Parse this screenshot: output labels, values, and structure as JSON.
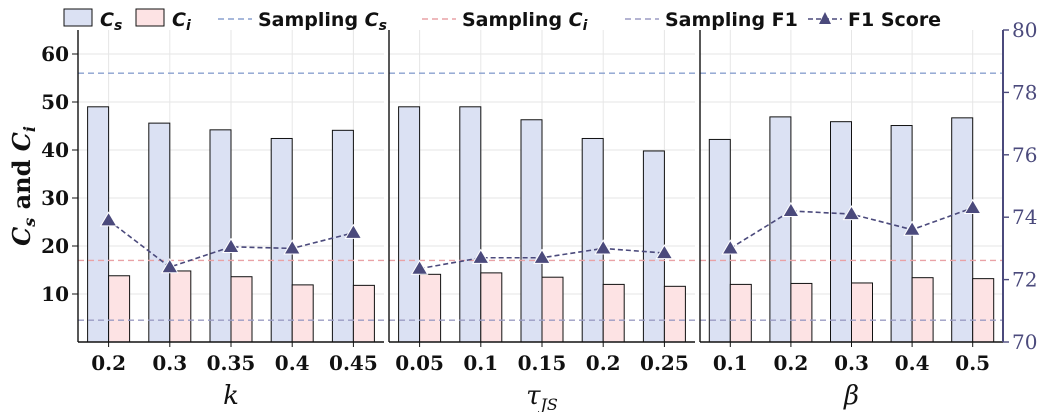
{
  "legend": {
    "items": [
      {
        "label": "C",
        "sub": "s",
        "kind": "bar",
        "color": "#dbe1f3"
      },
      {
        "label": "C",
        "sub": "i",
        "kind": "bar",
        "color": "#fde3e4"
      },
      {
        "label": "Sampling C",
        "sub": "s",
        "kind": "dash",
        "color": "#8aa0cf"
      },
      {
        "label": "Sampling C",
        "sub": "i",
        "kind": "dash",
        "color": "#e9a2a6"
      },
      {
        "label": "Sampling F1",
        "sub": "",
        "kind": "dash",
        "color": "#9b9cc3"
      },
      {
        "label": "F1 Score",
        "sub": "",
        "kind": "line-marker",
        "color": "#4b4a7c"
      }
    ]
  },
  "left_axis": {
    "label_main": "C",
    "label_sub1": "s",
    "label_and": " and ",
    "label_sub2": "i",
    "ticks": [
      "10",
      "20",
      "30",
      "40",
      "50",
      "60"
    ]
  },
  "right_axis": {
    "ticks": [
      "70",
      "72",
      "74",
      "76",
      "78",
      "80"
    ]
  },
  "chart_data": [
    {
      "type": "bar",
      "categories": [
        "0.2",
        "0.3",
        "0.35",
        "0.4",
        "0.45"
      ],
      "xlabel": "k",
      "ylim": [
        0,
        65
      ],
      "y2lim": [
        70,
        80
      ],
      "series": [
        {
          "name": "Cs",
          "values": [
            49,
            45.6,
            44.2,
            42.4,
            44.1
          ]
        },
        {
          "name": "Ci",
          "values": [
            13.8,
            14.8,
            13.6,
            11.9,
            11.8
          ]
        },
        {
          "name": "F1 Score",
          "axis": "right",
          "values": [
            73.9,
            72.4,
            73.05,
            73.0,
            73.5
          ]
        }
      ],
      "reference_lines": {
        "Sampling Cs": 56,
        "Sampling Ci": 17,
        "Sampling F1": 70.7
      }
    },
    {
      "type": "bar",
      "categories": [
        "0.05",
        "0.1",
        "0.15",
        "0.2",
        "0.25"
      ],
      "xlabel": "τJS",
      "ylim": [
        0,
        65
      ],
      "y2lim": [
        70,
        80
      ],
      "series": [
        {
          "name": "Cs",
          "values": [
            49,
            49,
            46.3,
            42.4,
            39.8
          ]
        },
        {
          "name": "Ci",
          "values": [
            14.1,
            14.4,
            13.5,
            12.0,
            11.6
          ]
        },
        {
          "name": "F1 Score",
          "axis": "right",
          "values": [
            72.35,
            72.7,
            72.7,
            73.0,
            72.85
          ]
        }
      ],
      "reference_lines": {
        "Sampling Cs": 56,
        "Sampling Ci": 17,
        "Sampling F1": 70.7
      }
    },
    {
      "type": "bar",
      "categories": [
        "0.1",
        "0.2",
        "0.3",
        "0.4",
        "0.5"
      ],
      "xlabel": "β",
      "ylim": [
        0,
        65
      ],
      "y2lim": [
        70,
        80
      ],
      "series": [
        {
          "name": "Cs",
          "values": [
            42.2,
            46.9,
            45.9,
            45.1,
            46.7
          ]
        },
        {
          "name": "Ci",
          "values": [
            12.0,
            12.2,
            12.3,
            13.4,
            13.2
          ]
        },
        {
          "name": "F1 Score",
          "axis": "right",
          "values": [
            73.0,
            74.2,
            74.1,
            73.6,
            74.3
          ]
        }
      ],
      "reference_lines": {
        "Sampling Cs": 56,
        "Sampling Ci": 17,
        "Sampling F1": 70.7
      }
    }
  ],
  "colors": {
    "cs_fill": "#dbe1f3",
    "ci_fill": "#fde3e4",
    "bar_stroke": "#111111",
    "sampling_cs": "#8aa0cf",
    "sampling_ci": "#e9a2a6",
    "sampling_f1": "#9b9cc3",
    "f1_line": "#4b4a7c",
    "right_axis": "#4b4a7c"
  }
}
